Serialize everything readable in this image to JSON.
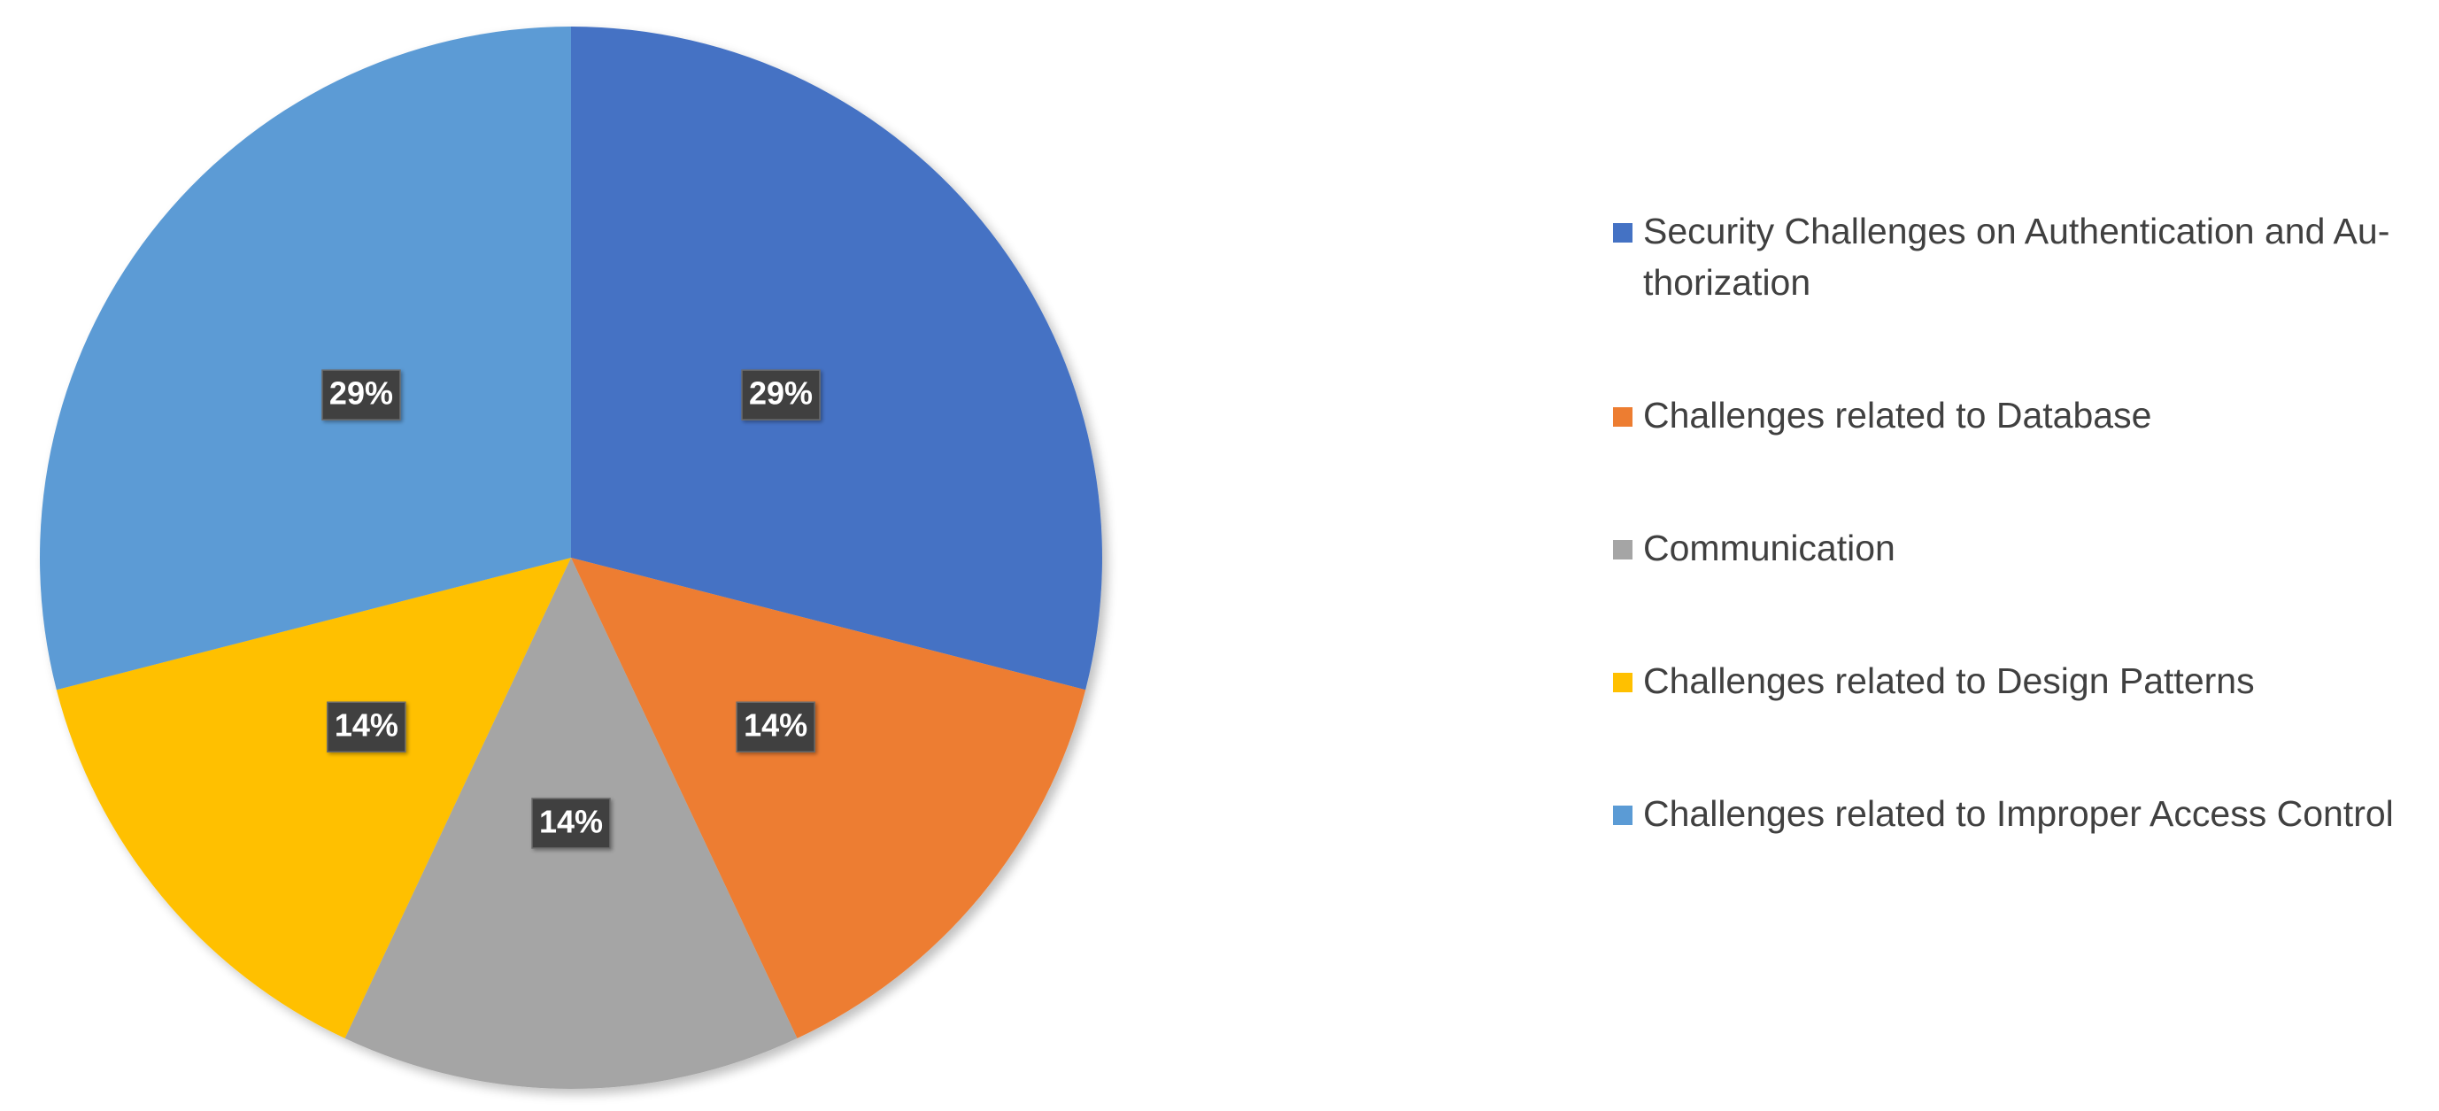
{
  "chart_data": {
    "type": "pie",
    "title": "",
    "legend_position": "right",
    "series": [
      {
        "values": [
          29,
          14,
          14,
          14,
          29
        ],
        "labels": [
          "29%",
          "14%",
          "14%",
          "14%",
          "29%"
        ]
      }
    ],
    "categories": [
      "Security Challenges on Authentication and Au-thorization",
      "Challenges related to Database",
      "Communication",
      "Challenges related to Design Patterns",
      "Challenges related to Improper Access Control"
    ],
    "legend": [
      {
        "label": "Security Challenges on Authentication and Au-thorization",
        "color": "#4472C4"
      },
      {
        "label": "Challenges related to Database",
        "color": "#ED7D31"
      },
      {
        "label": "Communication",
        "color": "#A5A5A5"
      },
      {
        "label": "Challenges related to Design Patterns",
        "color": "#FFC000"
      },
      {
        "label": "Challenges related to Improper Access Control",
        "color": "#5B9BD5"
      }
    ],
    "colors": [
      "#4472C4",
      "#ED7D31",
      "#A5A5A5",
      "#FFC000",
      "#5B9BD5"
    ],
    "start_angle": "12 o'clock",
    "direction": "clockwise"
  }
}
